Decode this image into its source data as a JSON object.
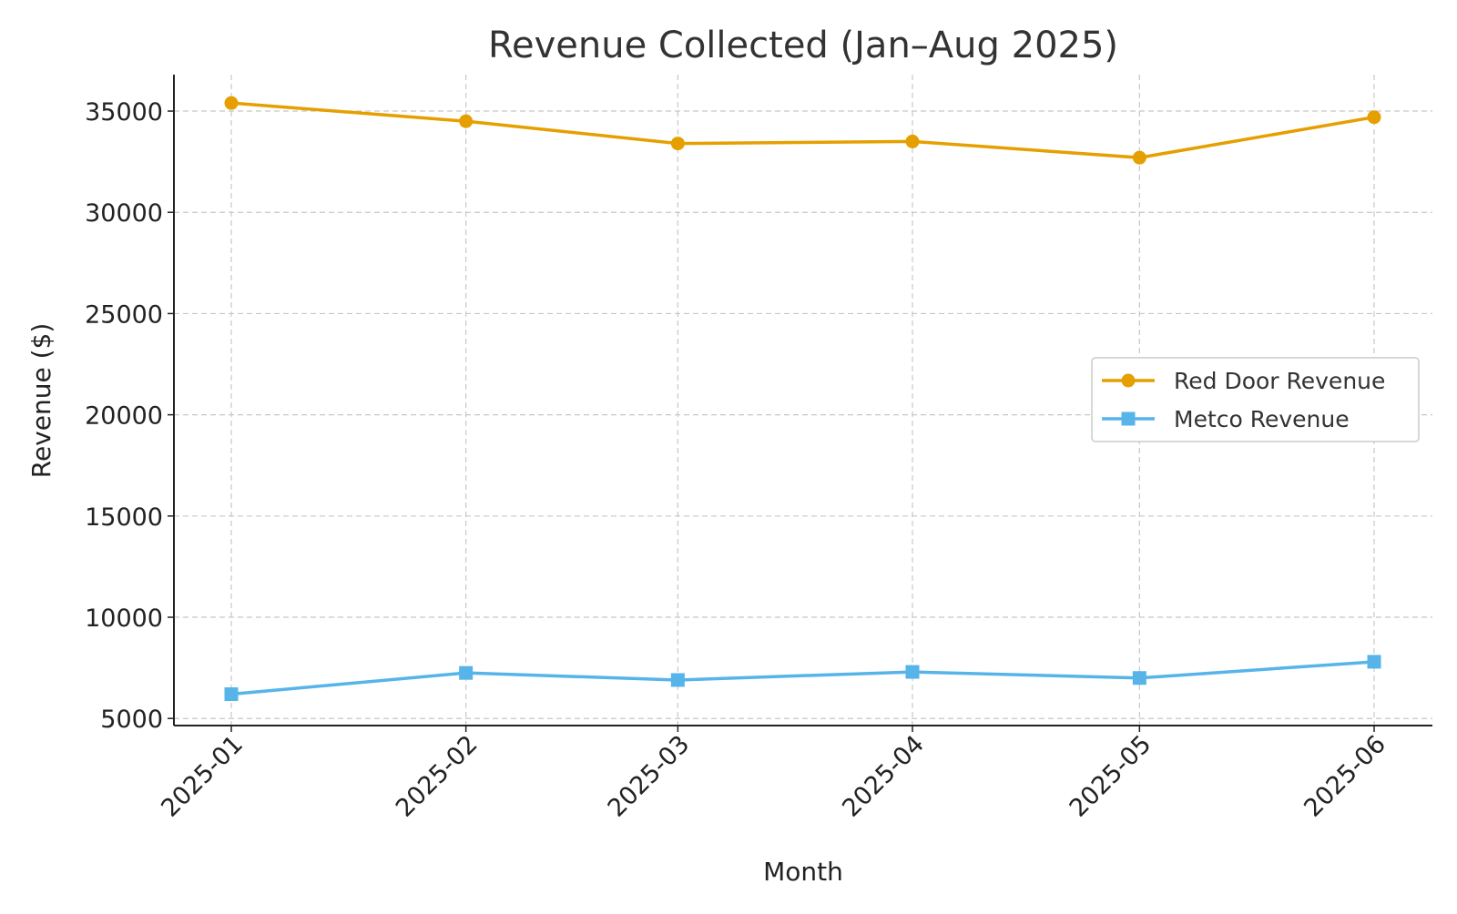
{
  "chart_data": {
    "type": "line",
    "title": "Revenue Collected (Jan–Aug 2025)",
    "xlabel": "Month",
    "ylabel": "Revenue ($)",
    "x": [
      "2025-01-01",
      "2025-02-01",
      "2025-03-01",
      "2025-04-01",
      "2025-05-01",
      "2025-06-01"
    ],
    "x_tick_labels": [
      "2025-01",
      "2025-02",
      "2025-03",
      "2025-04",
      "2025-05",
      "2025-06"
    ],
    "y_ticks": [
      5000,
      10000,
      15000,
      20000,
      25000,
      30000,
      35000
    ],
    "ylim": [
      4650,
      36800
    ],
    "grid": true,
    "legend_position": "center-right",
    "series": [
      {
        "name": "Red Door Revenue",
        "values": [
          35400,
          34500,
          33400,
          33500,
          32700,
          34700
        ],
        "color": "#E69F00",
        "marker": "circle"
      },
      {
        "name": "Metco Revenue",
        "values": [
          6200,
          7250,
          6900,
          7300,
          7000,
          7800
        ],
        "color": "#56B4E9",
        "marker": "square"
      }
    ]
  }
}
